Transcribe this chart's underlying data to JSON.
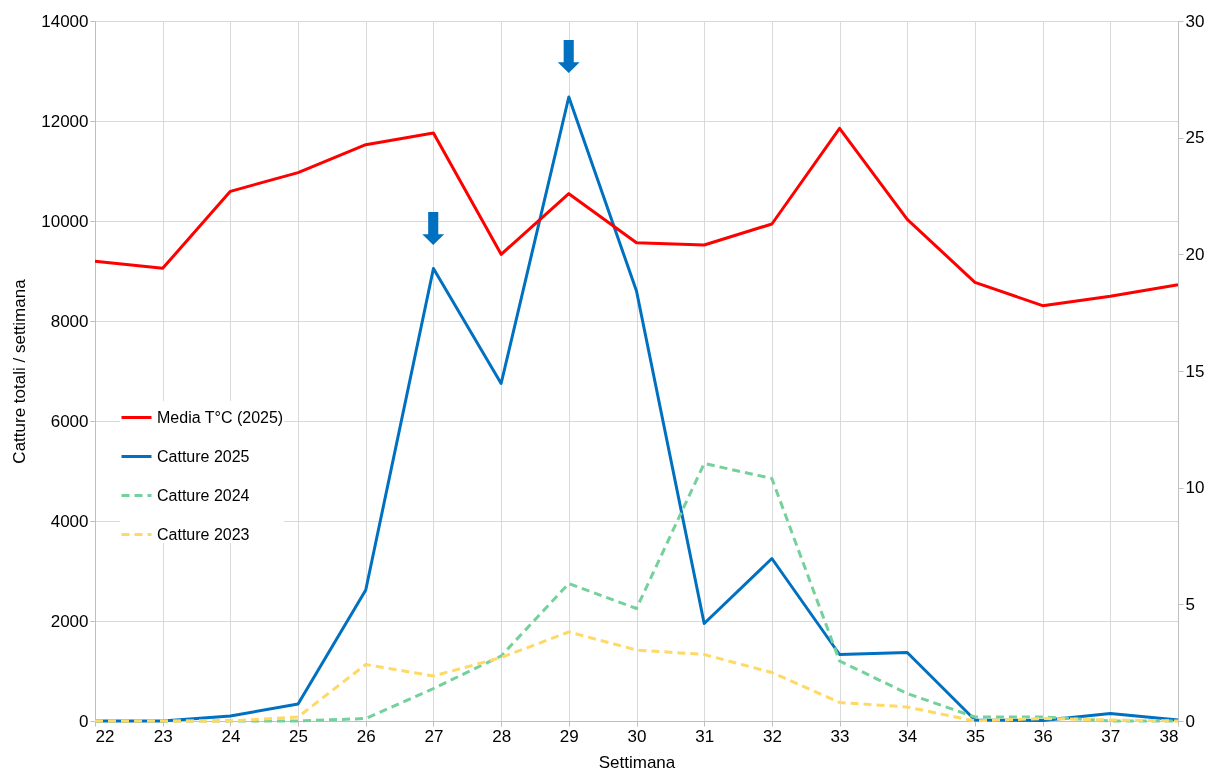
{
  "chart_data": {
    "type": "line",
    "xlabel": "Settimana",
    "ylabel": "Catture totali / settimana",
    "x": [
      22,
      23,
      24,
      25,
      26,
      27,
      28,
      29,
      30,
      31,
      32,
      33,
      34,
      35,
      36,
      37,
      38
    ],
    "xlim": [
      22,
      38
    ],
    "xticks": [
      22,
      23,
      24,
      25,
      26,
      27,
      28,
      29,
      30,
      31,
      32,
      33,
      34,
      35,
      36,
      37,
      38
    ],
    "ylim": [
      0,
      14000
    ],
    "yticks": [
      0,
      2000,
      4000,
      6000,
      8000,
      10000,
      12000,
      14000
    ],
    "y2lim": [
      0,
      30
    ],
    "y2ticks": [
      0,
      5,
      10,
      15,
      20,
      25,
      30
    ],
    "grid": true,
    "legend": "left",
    "marker": "none",
    "series": [
      {
        "name": "Media T°C (2025)",
        "color": "#ff0000",
        "axis": "y2",
        "line_style": "solid",
        "values": [
          19.7,
          19.4,
          22.7,
          23.5,
          24.7,
          25.2,
          20.0,
          22.6,
          20.5,
          20.4,
          21.3,
          25.4,
          21.5,
          18.8,
          17.8,
          18.2,
          18.7
        ]
      },
      {
        "name": "Catture 2025",
        "color": "#0070c0",
        "line_style": "solid",
        "values": [
          0,
          0,
          100,
          340,
          2620,
          9050,
          6750,
          12480,
          8600,
          1950,
          3250,
          1330,
          1370,
          20,
          10,
          150,
          20
        ]
      },
      {
        "name": "Catture 2024",
        "color": "#75d19c",
        "line_style": "dashed",
        "values": [
          0,
          0,
          0,
          0,
          50,
          650,
          1300,
          2750,
          2250,
          5150,
          4850,
          1200,
          550,
          80,
          80,
          0,
          0
        ]
      },
      {
        "name": "Catture 2023",
        "color": "#ffd966",
        "line_style": "dashed",
        "values": [
          0,
          0,
          0,
          80,
          1130,
          900,
          1270,
          1780,
          1420,
          1330,
          970,
          370,
          280,
          0,
          50,
          20,
          0
        ]
      }
    ],
    "annotations": [
      {
        "text": "⬇",
        "x": 27,
        "y": 9050
      },
      {
        "text": "⬇",
        "x": 29,
        "y": 12480
      }
    ]
  }
}
